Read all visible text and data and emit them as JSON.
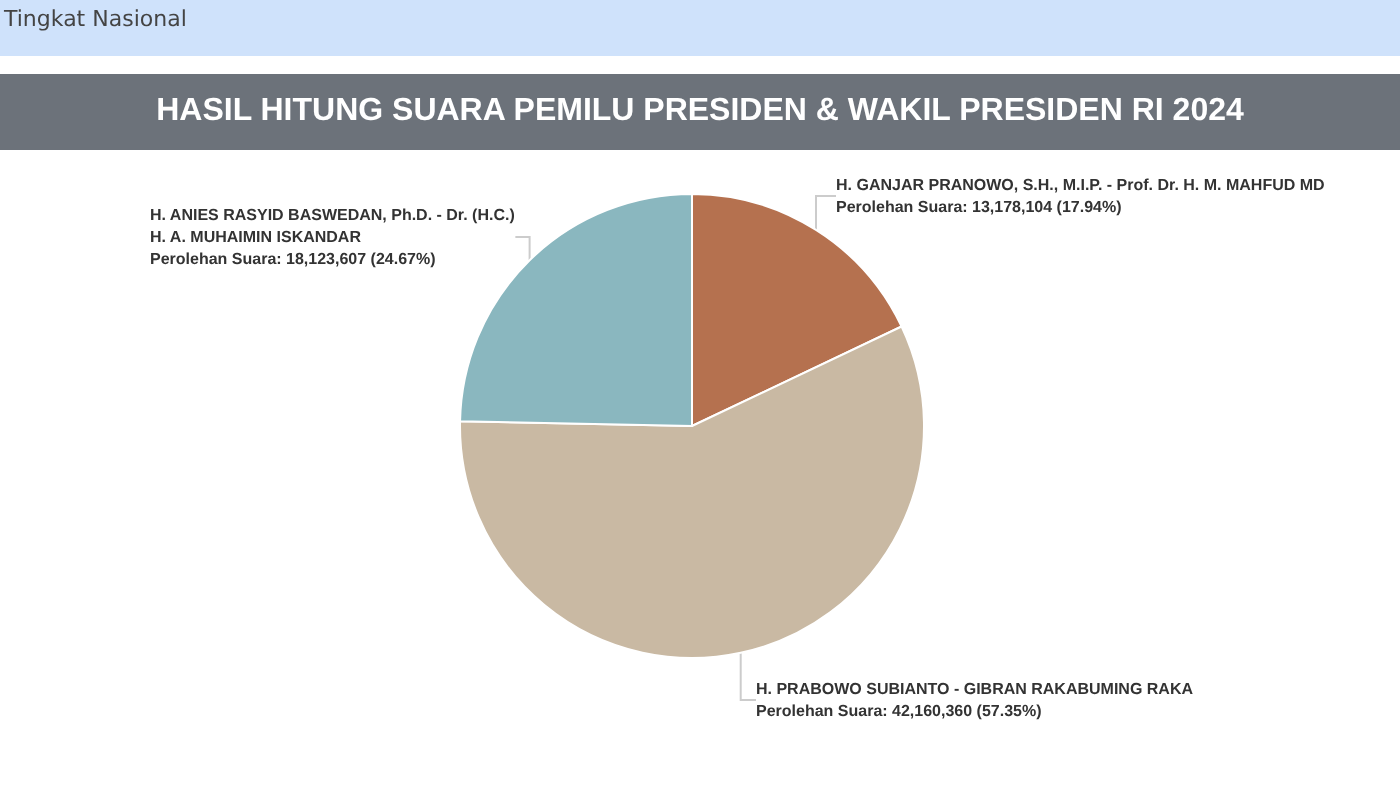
{
  "chart_data": {
    "type": "pie",
    "subtitle": "Tingkat Nasional",
    "title": "HASIL HITUNG SUARA PEMILU PRESIDEN & WAKIL PRESIDEN RI 2024",
    "categories": [
      "H. GANJAR PRANOWO, S.H., M.I.P. - Prof. Dr. H. M. MAHFUD MD",
      "H. PRABOWO SUBIANTO - GIBRAN RAKABUMING RAKA",
      "H. ANIES RASYID BASWEDAN, Ph.D. - Dr. (H.C.) H. A. MUHAIMIN ISKANDAR"
    ],
    "values": [
      17.94,
      57.35,
      24.67
    ],
    "value_labels": [
      "Perolehan Suara: 13,178,104 (17.94%)",
      "Perolehan Suara: 42,160,360 (57.35%)",
      "Perolehan Suara: 18,123,607 (24.67%)"
    ],
    "colors": [
      "#b5714f",
      "#c9b9a3",
      "#8ab7bf"
    ]
  }
}
